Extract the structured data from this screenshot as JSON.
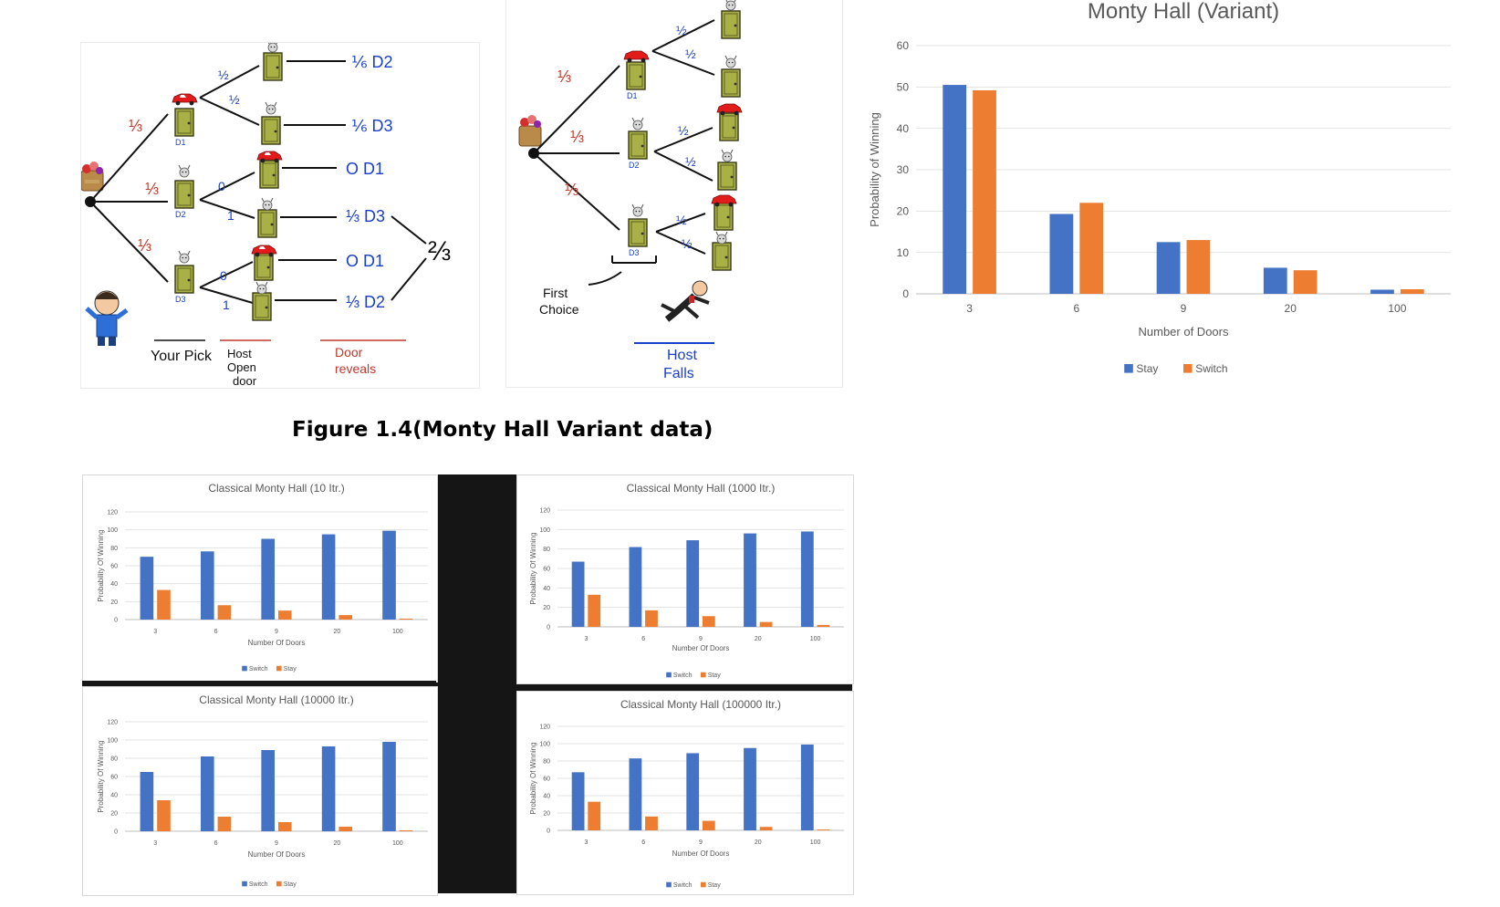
{
  "caption": "Figure 1.4(Monty Hall Variant data)",
  "colors": {
    "blue": "#4472C4",
    "orange": "#ED7D31",
    "ink_red": "#C0392B",
    "ink_blue": "#1A3FC9",
    "ink_black": "#222222",
    "door": "#A9B046",
    "gridline": "#E3E3E3"
  },
  "tree1": {
    "labels": {
      "p1": "⅓",
      "p2": "⅓",
      "p3": "⅓",
      "d1": "D1",
      "d2": "D2",
      "d3": "D3",
      "h1": "½",
      "h2": "½",
      "h3": "0",
      "h4": "1",
      "h5": "0",
      "h6": "1",
      "o1": "⅙ D2",
      "o2": "⅙ D3",
      "o3": "O D1",
      "o4": "⅓ D3",
      "o5": "O D1",
      "o6": "⅓ D2",
      "sum": "⅔",
      "col1": "Your Pick",
      "col2a": "Host",
      "col2b": "Open",
      "col2c": "door",
      "col3a": "Door",
      "col3b": "reveals"
    }
  },
  "tree2": {
    "labels": {
      "p1": "⅓",
      "p2": "⅓",
      "p3": "⅓",
      "d1": "D1",
      "d2": "D2",
      "d3": "D3",
      "h1": "½",
      "h2": "½",
      "h3": "½",
      "h4": "½",
      "h5": "½",
      "h6": "½",
      "first_a": "First",
      "first_b": "Choice",
      "host_a": "Host",
      "host_b": "Falls"
    }
  },
  "chart_data": [
    {
      "type": "bar",
      "title": "Monty Hall (Variant)",
      "xlabel": "Number of Doors",
      "ylabel": "Probability of Winning",
      "categories": [
        "3",
        "6",
        "9",
        "20",
        "100"
      ],
      "ylim": [
        0,
        60
      ],
      "yticks": [
        "0",
        "10",
        "20",
        "30",
        "40",
        "50",
        "60"
      ],
      "grid": true,
      "legend": "bottom",
      "series": [
        {
          "name": "Stay",
          "color": "#4472C4",
          "values": [
            50.5,
            19.3,
            12.5,
            6.3,
            1.0
          ]
        },
        {
          "name": "Switch",
          "color": "#ED7D31",
          "values": [
            49.2,
            22.0,
            13.0,
            5.7,
            1.1
          ]
        }
      ]
    },
    {
      "type": "bar",
      "title": "Classical Monty Hall (10 Itr.)",
      "xlabel": "Number Of Doors",
      "ylabel": "Probability Of Winning",
      "categories": [
        "3",
        "6",
        "9",
        "20",
        "100"
      ],
      "ylim": [
        0,
        120
      ],
      "yticks": [
        "0",
        "20",
        "40",
        "60",
        "80",
        "100",
        "120"
      ],
      "grid": true,
      "legend": "bottom",
      "series": [
        {
          "name": "Switch",
          "color": "#4472C4",
          "values": [
            70,
            76,
            90,
            95,
            99
          ]
        },
        {
          "name": "Stay",
          "color": "#ED7D31",
          "values": [
            33,
            16,
            10,
            5,
            1
          ]
        }
      ]
    },
    {
      "type": "bar",
      "title": "Classical Monty Hall (1000 Itr.)",
      "xlabel": "Number Of Doors",
      "ylabel": "Probability Of Winning",
      "categories": [
        "3",
        "6",
        "9",
        "20",
        "100"
      ],
      "ylim": [
        0,
        120
      ],
      "yticks": [
        "0",
        "20",
        "40",
        "60",
        "80",
        "100",
        "120"
      ],
      "grid": true,
      "legend": "bottom",
      "series": [
        {
          "name": "Switch",
          "color": "#4472C4",
          "values": [
            67,
            82,
            89,
            96,
            98
          ]
        },
        {
          "name": "Stay",
          "color": "#ED7D31",
          "values": [
            33,
            17,
            11,
            5,
            2
          ]
        }
      ]
    },
    {
      "type": "bar",
      "title": "Classical Monty Hall (10000 Itr.)",
      "xlabel": "Number Of Doors",
      "ylabel": "Probability Of Winning",
      "categories": [
        "3",
        "6",
        "9",
        "20",
        "100"
      ],
      "ylim": [
        0,
        120
      ],
      "yticks": [
        "0",
        "20",
        "40",
        "60",
        "80",
        "100",
        "120"
      ],
      "grid": true,
      "legend": "bottom",
      "series": [
        {
          "name": "Switch",
          "color": "#4472C4",
          "values": [
            65,
            82,
            89,
            93,
            98
          ]
        },
        {
          "name": "Stay",
          "color": "#ED7D31",
          "values": [
            34,
            16,
            10,
            5,
            1
          ]
        }
      ]
    },
    {
      "type": "bar",
      "title": "Classical Monty Hall (100000 Itr.)",
      "xlabel": "Number Of Doors",
      "ylabel": "Probability Of Winning",
      "categories": [
        "3",
        "6",
        "9",
        "20",
        "100"
      ],
      "ylim": [
        0,
        120
      ],
      "yticks": [
        "0",
        "20",
        "40",
        "60",
        "80",
        "100",
        "120"
      ],
      "grid": true,
      "legend": "bottom",
      "series": [
        {
          "name": "Switch",
          "color": "#4472C4",
          "values": [
            67,
            83,
            89,
            95,
            99
          ]
        },
        {
          "name": "Stay",
          "color": "#ED7D31",
          "values": [
            33,
            16,
            11,
            4,
            1
          ]
        }
      ]
    }
  ]
}
